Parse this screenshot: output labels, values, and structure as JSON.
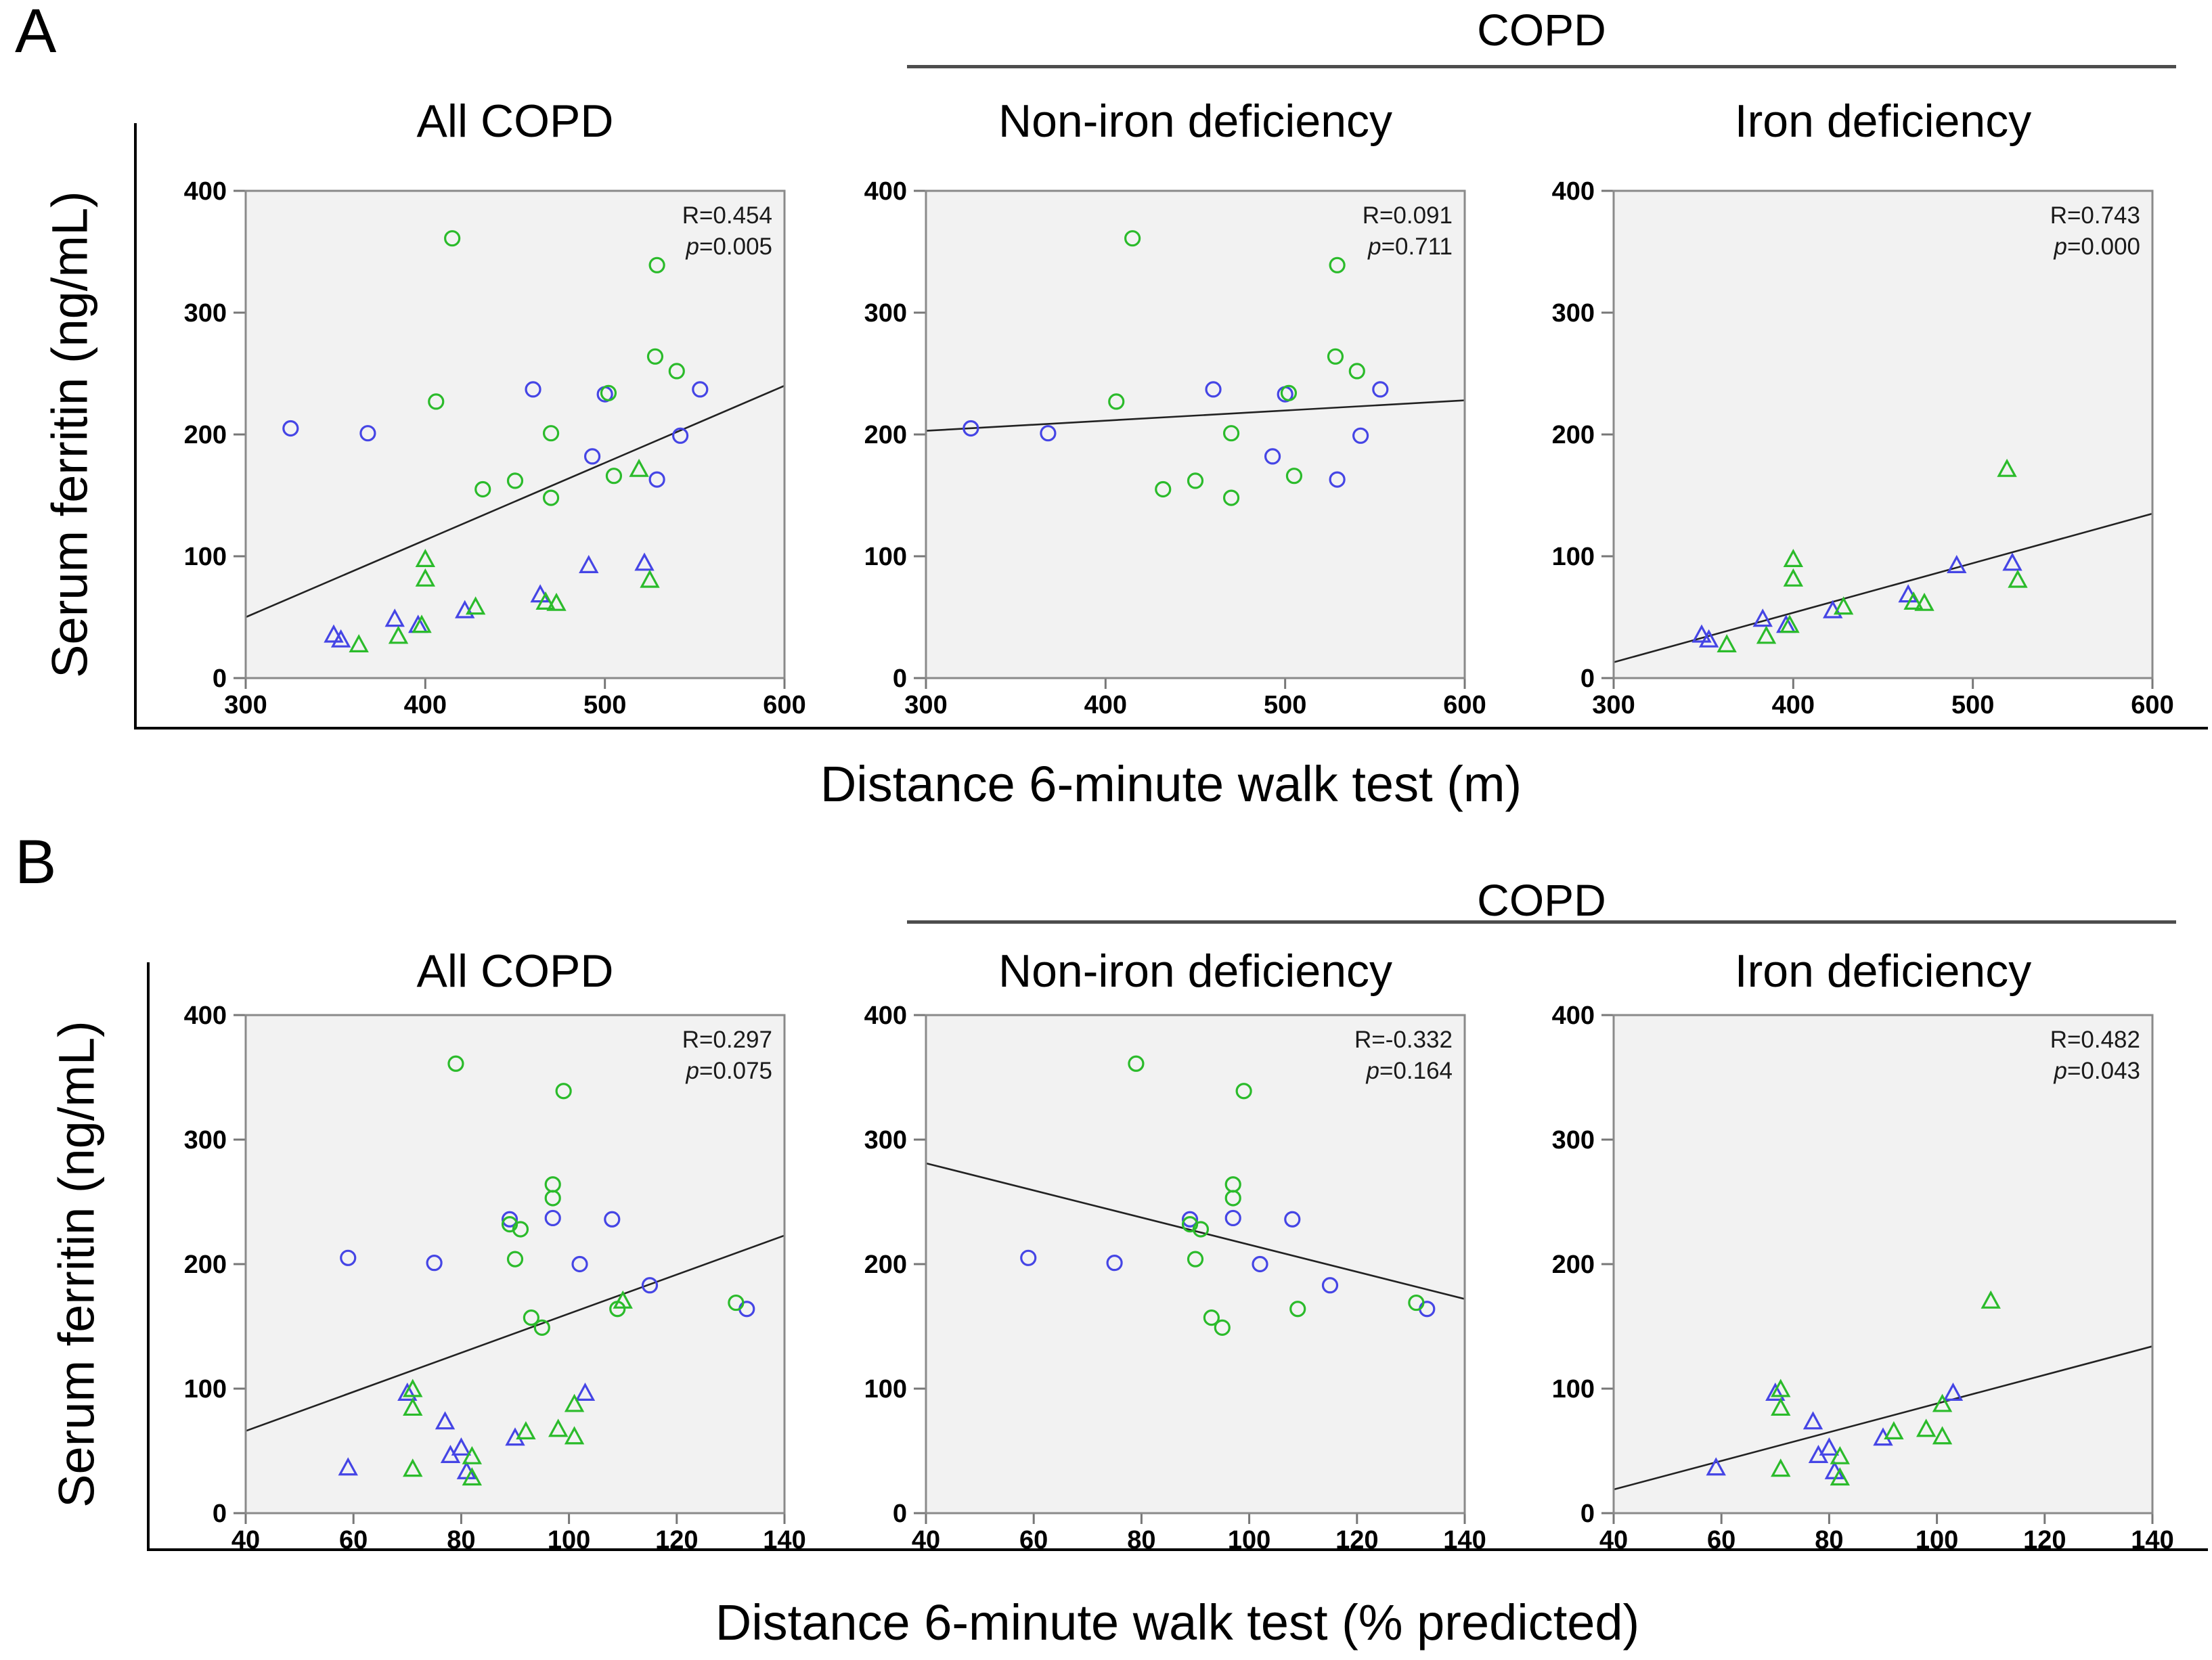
{
  "colors": {
    "blue_marker": "#4545e5",
    "green_marker": "#2bbb2b",
    "plot_background": "#f2f2f2",
    "plot_border": "#8a8a8a",
    "tick_mark": "#777777",
    "regression_line": "#222222",
    "header_rule": "#4d4d4d",
    "master_axis": "#000000"
  },
  "panels": [
    {
      "label": "A",
      "group_header": "COPD",
      "y_axis_label": "Serum ferritin (ng/mL)",
      "x_axis_label": "Distance 6-minute walk test (m)"
    },
    {
      "label": "B",
      "group_header": "COPD",
      "y_axis_label": "Serum ferritin (ng/mL)",
      "x_axis_label": "Distance 6-minute walk test (% predicted)"
    }
  ],
  "chart_data": [
    {
      "panel": "A",
      "slot": 0,
      "type": "scatter",
      "title": "All COPD",
      "xlabel": "Distance 6-minute walk test (m)",
      "ylabel": "Serum ferritin (ng/mL)",
      "xlim": [
        300,
        600
      ],
      "xticks": [
        300,
        400,
        500,
        600
      ],
      "ylim": [
        0,
        400
      ],
      "yticks": [
        0,
        100,
        200,
        300,
        400
      ],
      "grid": false,
      "legend": "none",
      "stats": {
        "r_label": "R=0.454",
        "p_label": "p=0.005"
      },
      "regression_line": {
        "x1": 300,
        "y1": 50,
        "x2": 600,
        "y2": 240
      },
      "series": [
        {
          "name": "blue-circles",
          "marker": "circle",
          "color": "blue",
          "points": [
            [
              325,
              205
            ],
            [
              368,
              201
            ],
            [
              460,
              237
            ],
            [
              500,
              233
            ],
            [
              493,
              182
            ],
            [
              529,
              163
            ],
            [
              553,
              237
            ],
            [
              542,
              199
            ]
          ]
        },
        {
          "name": "green-circles",
          "marker": "circle",
          "color": "green",
          "points": [
            [
              415,
              361
            ],
            [
              529,
              339
            ],
            [
              406,
              227
            ],
            [
              502,
              234
            ],
            [
              470,
              201
            ],
            [
              528,
              264
            ],
            [
              540,
              252
            ],
            [
              432,
              155
            ],
            [
              450,
              162
            ],
            [
              470,
              148
            ],
            [
              505,
              166
            ]
          ]
        },
        {
          "name": "blue-triangles",
          "marker": "triangle",
          "color": "blue",
          "points": [
            [
              349,
              35
            ],
            [
              353,
              31
            ],
            [
              383,
              48
            ],
            [
              396,
              43
            ],
            [
              422,
              55
            ],
            [
              464,
              68
            ],
            [
              491,
              92
            ],
            [
              522,
              94
            ]
          ]
        },
        {
          "name": "green-triangles",
          "marker": "triangle",
          "color": "green",
          "points": [
            [
              363,
              27
            ],
            [
              385,
              34
            ],
            [
              398,
              43
            ],
            [
              400,
              97
            ],
            [
              400,
              81
            ],
            [
              428,
              58
            ],
            [
              467,
              62
            ],
            [
              473,
              61
            ],
            [
              525,
              80
            ],
            [
              519,
              171
            ]
          ]
        }
      ]
    },
    {
      "panel": "A",
      "slot": 1,
      "type": "scatter",
      "title": "Non-iron deficiency",
      "xlabel": "Distance 6-minute walk test (m)",
      "ylabel": "Serum ferritin (ng/mL)",
      "xlim": [
        300,
        600
      ],
      "xticks": [
        300,
        400,
        500,
        600
      ],
      "ylim": [
        0,
        400
      ],
      "yticks": [
        0,
        100,
        200,
        300,
        400
      ],
      "grid": false,
      "legend": "none",
      "stats": {
        "r_label": "R=0.091",
        "p_label": "p=0.711"
      },
      "regression_line": {
        "x1": 300,
        "y1": 203,
        "x2": 600,
        "y2": 228
      },
      "series": [
        {
          "name": "blue-circles",
          "marker": "circle",
          "color": "blue",
          "points": [
            [
              325,
              205
            ],
            [
              368,
              201
            ],
            [
              460,
              237
            ],
            [
              500,
              233
            ],
            [
              493,
              182
            ],
            [
              529,
              163
            ],
            [
              553,
              237
            ],
            [
              542,
              199
            ]
          ]
        },
        {
          "name": "green-circles",
          "marker": "circle",
          "color": "green",
          "points": [
            [
              415,
              361
            ],
            [
              529,
              339
            ],
            [
              406,
              227
            ],
            [
              502,
              234
            ],
            [
              470,
              201
            ],
            [
              528,
              264
            ],
            [
              540,
              252
            ],
            [
              432,
              155
            ],
            [
              450,
              162
            ],
            [
              470,
              148
            ],
            [
              505,
              166
            ]
          ]
        }
      ]
    },
    {
      "panel": "A",
      "slot": 2,
      "type": "scatter",
      "title": "Iron deficiency",
      "xlabel": "Distance 6-minute walk test (m)",
      "ylabel": "Serum ferritin (ng/mL)",
      "xlim": [
        300,
        600
      ],
      "xticks": [
        300,
        400,
        500,
        600
      ],
      "ylim": [
        0,
        400
      ],
      "yticks": [
        0,
        100,
        200,
        300,
        400
      ],
      "grid": false,
      "legend": "none",
      "stats": {
        "r_label": "R=0.743",
        "p_label": "p=0.000"
      },
      "regression_line": {
        "x1": 300,
        "y1": 13,
        "x2": 600,
        "y2": 135
      },
      "series": [
        {
          "name": "blue-triangles",
          "marker": "triangle",
          "color": "blue",
          "points": [
            [
              349,
              35
            ],
            [
              353,
              31
            ],
            [
              383,
              48
            ],
            [
              396,
              43
            ],
            [
              422,
              55
            ],
            [
              464,
              68
            ],
            [
              491,
              92
            ],
            [
              522,
              94
            ]
          ]
        },
        {
          "name": "green-triangles",
          "marker": "triangle",
          "color": "green",
          "points": [
            [
              363,
              27
            ],
            [
              385,
              34
            ],
            [
              398,
              43
            ],
            [
              400,
              97
            ],
            [
              400,
              81
            ],
            [
              428,
              58
            ],
            [
              467,
              62
            ],
            [
              473,
              61
            ],
            [
              525,
              80
            ],
            [
              519,
              171
            ]
          ]
        }
      ]
    },
    {
      "panel": "B",
      "slot": 0,
      "type": "scatter",
      "title": "All COPD",
      "xlabel": "Distance 6-minute walk test (% predicted)",
      "ylabel": "Serum ferritin (ng/mL)",
      "xlim": [
        40,
        140
      ],
      "xticks": [
        40,
        60,
        80,
        100,
        120,
        140
      ],
      "ylim": [
        0,
        400
      ],
      "yticks": [
        0,
        100,
        200,
        300,
        400
      ],
      "grid": false,
      "legend": "none",
      "stats": {
        "r_label": "R=0.297",
        "p_label": "p=0.075"
      },
      "regression_line": {
        "x1": 40,
        "y1": 66,
        "x2": 140,
        "y2": 223
      },
      "series": [
        {
          "name": "blue-circles",
          "marker": "circle",
          "color": "blue",
          "points": [
            [
              59,
              205
            ],
            [
              75,
              201
            ],
            [
              89,
              236
            ],
            [
              97,
              237
            ],
            [
              102,
              200
            ],
            [
              108,
              236
            ],
            [
              115,
              183
            ],
            [
              133,
              164
            ]
          ]
        },
        {
          "name": "green-circles",
          "marker": "circle",
          "color": "green",
          "points": [
            [
              79,
              361
            ],
            [
              99,
              339
            ],
            [
              89,
              232
            ],
            [
              91,
              228
            ],
            [
              90,
              204
            ],
            [
              97,
              264
            ],
            [
              97,
              253
            ],
            [
              93,
              157
            ],
            [
              95,
              149
            ],
            [
              109,
              164
            ],
            [
              131,
              169
            ]
          ]
        },
        {
          "name": "blue-triangles",
          "marker": "triangle",
          "color": "blue",
          "points": [
            [
              59,
              36
            ],
            [
              70,
              96
            ],
            [
              77,
              73
            ],
            [
              78,
              46
            ],
            [
              80,
              52
            ],
            [
              81,
              33
            ],
            [
              90,
              60
            ],
            [
              103,
              96
            ]
          ]
        },
        {
          "name": "green-triangles",
          "marker": "triangle",
          "color": "green",
          "points": [
            [
              71,
              99
            ],
            [
              71,
              84
            ],
            [
              71,
              35
            ],
            [
              82,
              45
            ],
            [
              82,
              28
            ],
            [
              92,
              65
            ],
            [
              98,
              67
            ],
            [
              101,
              61
            ],
            [
              101,
              87
            ],
            [
              110,
              170
            ]
          ]
        }
      ]
    },
    {
      "panel": "B",
      "slot": 1,
      "type": "scatter",
      "title": "Non-iron deficiency",
      "xlabel": "Distance 6-minute walk test (% predicted)",
      "ylabel": "Serum ferritin (ng/mL)",
      "xlim": [
        40,
        140
      ],
      "xticks": [
        40,
        60,
        80,
        100,
        120,
        140
      ],
      "ylim": [
        0,
        400
      ],
      "yticks": [
        0,
        100,
        200,
        300,
        400
      ],
      "grid": false,
      "legend": "none",
      "stats": {
        "r_label": "R=-0.332",
        "p_label": "p=0.164"
      },
      "regression_line": {
        "x1": 40,
        "y1": 281,
        "x2": 140,
        "y2": 172
      },
      "series": [
        {
          "name": "blue-circles",
          "marker": "circle",
          "color": "blue",
          "points": [
            [
              59,
              205
            ],
            [
              75,
              201
            ],
            [
              89,
              236
            ],
            [
              97,
              237
            ],
            [
              102,
              200
            ],
            [
              108,
              236
            ],
            [
              115,
              183
            ],
            [
              133,
              164
            ]
          ]
        },
        {
          "name": "green-circles",
          "marker": "circle",
          "color": "green",
          "points": [
            [
              79,
              361
            ],
            [
              99,
              339
            ],
            [
              89,
              232
            ],
            [
              91,
              228
            ],
            [
              90,
              204
            ],
            [
              97,
              264
            ],
            [
              97,
              253
            ],
            [
              93,
              157
            ],
            [
              95,
              149
            ],
            [
              109,
              164
            ],
            [
              131,
              169
            ]
          ]
        }
      ]
    },
    {
      "panel": "B",
      "slot": 2,
      "type": "scatter",
      "title": "Iron deficiency",
      "xlabel": "Distance 6-minute walk test (% predicted)",
      "ylabel": "Serum ferritin (ng/mL)",
      "xlim": [
        40,
        140
      ],
      "xticks": [
        40,
        60,
        80,
        100,
        120,
        140
      ],
      "ylim": [
        0,
        400
      ],
      "yticks": [
        0,
        100,
        200,
        300,
        400
      ],
      "grid": false,
      "legend": "none",
      "stats": {
        "r_label": "R=0.482",
        "p_label": "p=0.043"
      },
      "regression_line": {
        "x1": 40,
        "y1": 19,
        "x2": 140,
        "y2": 134
      },
      "series": [
        {
          "name": "blue-triangles",
          "marker": "triangle",
          "color": "blue",
          "points": [
            [
              59,
              36
            ],
            [
              70,
              96
            ],
            [
              77,
              73
            ],
            [
              78,
              46
            ],
            [
              80,
              52
            ],
            [
              81,
              33
            ],
            [
              90,
              60
            ],
            [
              103,
              96
            ]
          ]
        },
        {
          "name": "green-triangles",
          "marker": "triangle",
          "color": "green",
          "points": [
            [
              71,
              99
            ],
            [
              71,
              84
            ],
            [
              71,
              35
            ],
            [
              82,
              45
            ],
            [
              82,
              28
            ],
            [
              92,
              65
            ],
            [
              98,
              67
            ],
            [
              101,
              61
            ],
            [
              101,
              87
            ],
            [
              110,
              170
            ]
          ]
        }
      ]
    }
  ]
}
